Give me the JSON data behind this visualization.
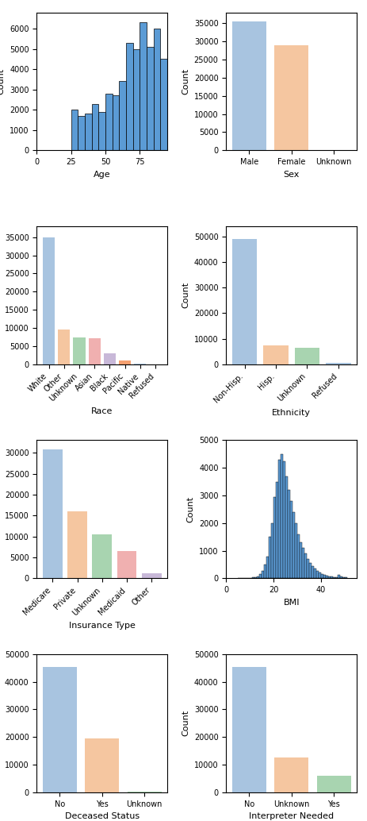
{
  "age": {
    "bin_edges": [
      0,
      5,
      10,
      15,
      20,
      25,
      30,
      35,
      40,
      45,
      50,
      55,
      60,
      65,
      70,
      75,
      80,
      85,
      90,
      95
    ],
    "counts": [
      0,
      0,
      0,
      0,
      0,
      2000,
      1700,
      1800,
      2300,
      1900,
      2800,
      2700,
      3400,
      5300,
      5000,
      6300,
      5100,
      6000,
      4500
    ],
    "color": "#5b9bd5",
    "xlabel": "Age",
    "ylabel": "Count",
    "xticks": [
      0,
      25,
      50,
      75
    ],
    "ylim": [
      0,
      6800
    ]
  },
  "sex": {
    "categories": [
      "Male",
      "Female",
      "Unknown"
    ],
    "counts": [
      35500,
      29000,
      0
    ],
    "colors": [
      "#a8c4e0",
      "#f5c6a0",
      "#a8c4e0"
    ],
    "xlabel": "Sex",
    "ylabel": "Count",
    "ylim": [
      0,
      38000
    ]
  },
  "race": {
    "categories": [
      "White",
      "Other",
      "Unknown",
      "Asian",
      "Black",
      "Pacific",
      "Native",
      "Refused"
    ],
    "counts": [
      35000,
      9500,
      7500,
      7200,
      3000,
      1000,
      100,
      50
    ],
    "colors": [
      "#a8c4e0",
      "#f5c6a0",
      "#a8d4b0",
      "#f0b0b0",
      "#c8b8d8",
      "#f5a070",
      "#a8c4e0",
      "#a8c4e0"
    ],
    "xlabel": "Race",
    "ylabel": "Count",
    "ylim": [
      0,
      38000
    ]
  },
  "ethnicity": {
    "categories": [
      "Non-Hisp.",
      "Hisp.",
      "Unknown",
      "Refused"
    ],
    "counts": [
      49000,
      7500,
      6500,
      500
    ],
    "colors": [
      "#a8c4e0",
      "#f5c6a0",
      "#a8d4b0",
      "#a8c4e0"
    ],
    "xlabel": "Ethnicity",
    "ylabel": "Count",
    "ylim": [
      0,
      54000
    ]
  },
  "insurance": {
    "categories": [
      "Medicare",
      "Private",
      "Unknown",
      "Medicaid",
      "Other"
    ],
    "counts": [
      30800,
      16000,
      10500,
      6500,
      1200
    ],
    "colors": [
      "#a8c4e0",
      "#f5c6a0",
      "#a8d4b0",
      "#f0b0b0",
      "#c8b8d8"
    ],
    "xlabel": "Insurance Type",
    "ylabel": "Count",
    "ylim": [
      0,
      33000
    ]
  },
  "bmi": {
    "bin_edges": [
      5,
      6,
      7,
      8,
      9,
      10,
      11,
      12,
      13,
      14,
      15,
      16,
      17,
      18,
      19,
      20,
      21,
      22,
      23,
      24,
      25,
      26,
      27,
      28,
      29,
      30,
      31,
      32,
      33,
      34,
      35,
      36,
      37,
      38,
      39,
      40,
      41,
      42,
      43,
      44,
      45,
      46,
      47,
      48,
      49,
      50,
      51
    ],
    "counts": [
      0,
      0,
      5,
      10,
      15,
      20,
      30,
      50,
      80,
      150,
      280,
      500,
      800,
      1500,
      2000,
      2950,
      3500,
      4300,
      4500,
      4250,
      3700,
      3200,
      2800,
      2400,
      2000,
      1600,
      1300,
      1100,
      900,
      700,
      550,
      450,
      350,
      280,
      200,
      150,
      120,
      100,
      80,
      60,
      50,
      40,
      120,
      80,
      50,
      30
    ],
    "color": "#5b9bd5",
    "xlabel": "BMI",
    "ylabel": "Count",
    "xlim": [
      0,
      55
    ],
    "ylim": [
      0,
      5000
    ]
  },
  "deceased": {
    "categories": [
      "No",
      "Yes",
      "Unknown"
    ],
    "counts": [
      45500,
      19500,
      200
    ],
    "colors": [
      "#a8c4e0",
      "#f5c6a0",
      "#a8d4b0"
    ],
    "xlabel": "Deceased Status",
    "ylabel": "Count",
    "ylim": [
      0,
      50000
    ]
  },
  "interpreter": {
    "categories": [
      "No",
      "Unknown",
      "Yes"
    ],
    "counts": [
      45500,
      12500,
      6000
    ],
    "colors": [
      "#a8c4e0",
      "#f5c6a0",
      "#a8d4b0"
    ],
    "xlabel": "Interpreter Needed",
    "ylabel": "Count",
    "ylim": [
      0,
      50000
    ]
  }
}
